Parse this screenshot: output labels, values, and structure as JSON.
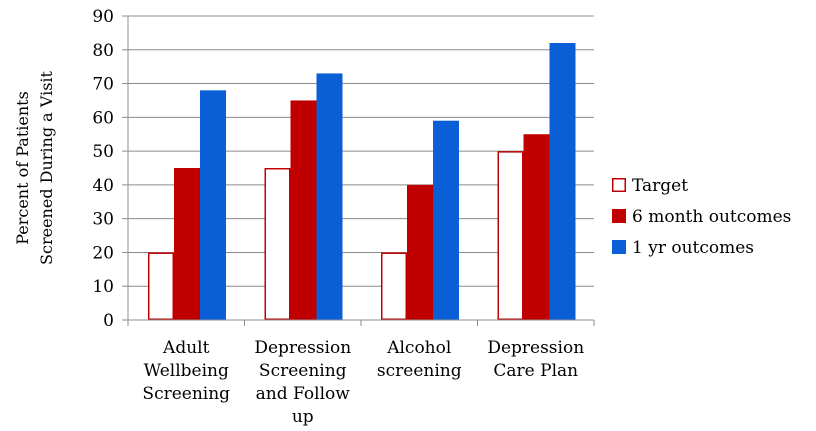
{
  "chart_data": {
    "type": "bar",
    "title": "",
    "xlabel": "",
    "ylabel_lines": [
      "Percent of Patients",
      "Screened During a Visit"
    ],
    "ylim": [
      0,
      90
    ],
    "yticks": [
      0,
      10,
      20,
      30,
      40,
      50,
      60,
      70,
      80,
      90
    ],
    "grid": true,
    "legend_position": "right",
    "categories": [
      [
        "Adult",
        "Wellbeing",
        "Screening"
      ],
      [
        "Depression",
        "Screening",
        "and Follow",
        "up"
      ],
      [
        "Alcohol",
        "screening"
      ],
      [
        "Depression",
        "Care Plan"
      ]
    ],
    "series": [
      {
        "name": "Target",
        "values": [
          20,
          45,
          20,
          50
        ],
        "fill": "#ffffff",
        "stroke": "#c00000"
      },
      {
        "name": "6 month outcomes",
        "values": [
          45,
          65,
          40,
          55
        ],
        "fill": "#c00000",
        "stroke": "#c00000"
      },
      {
        "name": "1 yr outcomes",
        "values": [
          68,
          73,
          59,
          82
        ],
        "fill": "#0b5fd6",
        "stroke": "#0b5fd6"
      }
    ]
  }
}
